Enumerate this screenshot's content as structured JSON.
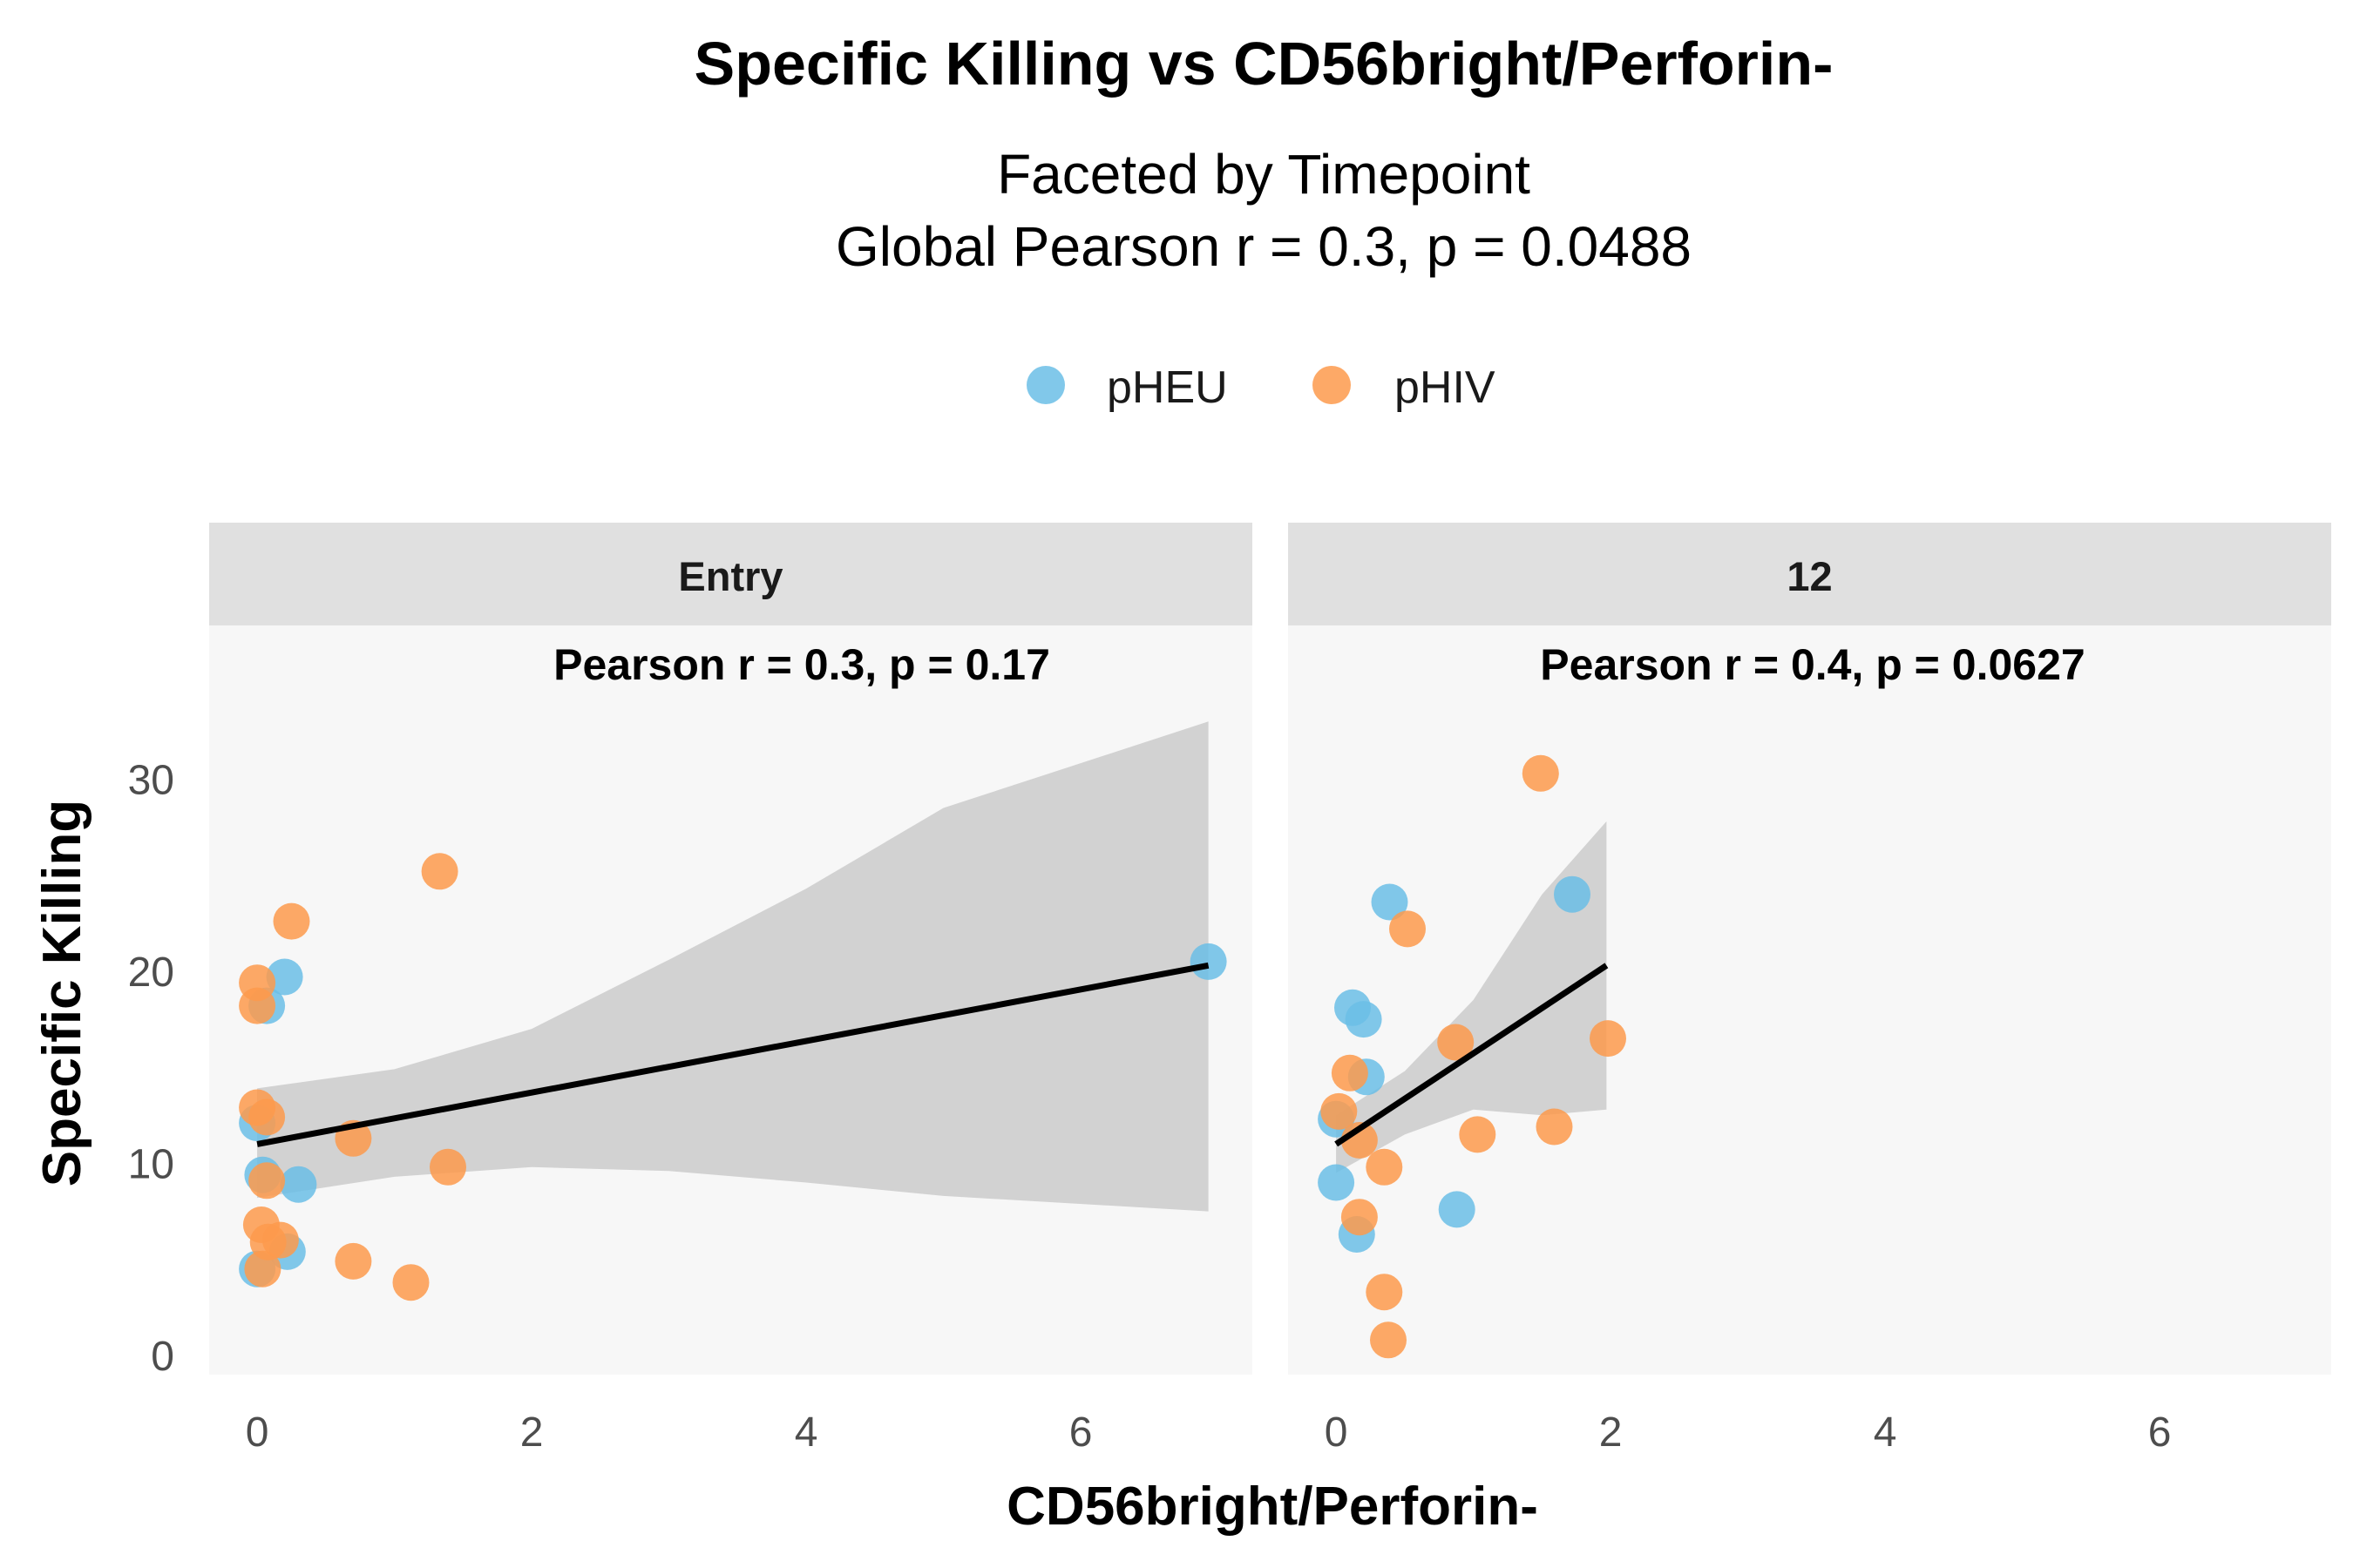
{
  "chart_data": {
    "type": "scatter",
    "title": "Specific Killing vs CD56bright/Perforin-",
    "subtitle_lines": [
      "Faceted by Timepoint",
      "Global Pearson r = 0.3, p = 0.0488"
    ],
    "xlabel": "CD56bright/Perforin-",
    "ylabel": "Specific Killing",
    "xlim": [
      -0.35,
      7.25
    ],
    "ylim": [
      -1,
      38
    ],
    "x_ticks": [
      0,
      2,
      4,
      6
    ],
    "y_ticks": [
      0,
      10,
      20,
      30
    ],
    "grid": false,
    "legend_position": "top",
    "legend": [
      {
        "label": "pHEU",
        "color": "#6BBEE6"
      },
      {
        "label": "pHIV",
        "color": "#FD9A4C"
      }
    ],
    "facets": [
      {
        "label": "Entry",
        "annotation": "Pearson r = 0.3, p = 0.17",
        "fit": {
          "x0": 0,
          "x1": 6.93,
          "y0": 11.0,
          "y1": 20.3
        },
        "band": {
          "lower": [
            8.2,
            9.3,
            9.8,
            9.6,
            9.0,
            8.3,
            7.5
          ],
          "upper": [
            13.9,
            14.9,
            17.0,
            20.6,
            24.3,
            28.5,
            33.0
          ],
          "x": [
            0,
            1,
            2,
            3,
            4,
            5,
            6.93
          ]
        },
        "series": [
          {
            "name": "pHEU",
            "points": [
              [
                0.0,
                4.5
              ],
              [
                0.04,
                9.4
              ],
              [
                0.0,
                12.1
              ],
              [
                0.07,
                18.2
              ],
              [
                0.2,
                19.7
              ],
              [
                0.3,
                8.9
              ],
              [
                0.22,
                5.4
              ],
              [
                6.93,
                20.5
              ]
            ]
          },
          {
            "name": "pHIV",
            "points": [
              [
                0.0,
                19.4
              ],
              [
                0.0,
                18.2
              ],
              [
                0.0,
                12.9
              ],
              [
                0.07,
                12.4
              ],
              [
                0.07,
                9.1
              ],
              [
                0.03,
                6.8
              ],
              [
                0.04,
                4.5
              ],
              [
                0.08,
                5.9
              ],
              [
                0.17,
                6.0
              ],
              [
                0.25,
                22.6
              ],
              [
                0.7,
                11.3
              ],
              [
                0.7,
                4.9
              ],
              [
                1.12,
                3.8
              ],
              [
                1.33,
                25.2
              ],
              [
                1.39,
                9.8
              ]
            ]
          }
        ]
      },
      {
        "label": "12",
        "annotation": "Pearson r = 0.4, p = 0.0627",
        "fit": {
          "x0": 0,
          "x1": 1.97,
          "y0": 11.0,
          "y1": 20.3
        },
        "band": {
          "lower": [
            9.5,
            11.5,
            12.8,
            12.5,
            12.8
          ],
          "upper": [
            12.5,
            14.8,
            18.5,
            24.0,
            27.8
          ],
          "x": [
            0,
            0.5,
            1.0,
            1.5,
            1.97
          ]
        },
        "series": [
          {
            "name": "pHEU",
            "points": [
              [
                0.0,
                12.3
              ],
              [
                0.0,
                9.0
              ],
              [
                0.12,
                18.1
              ],
              [
                0.2,
                17.5
              ],
              [
                0.22,
                14.5
              ],
              [
                0.15,
                6.3
              ],
              [
                0.39,
                23.6
              ],
              [
                0.88,
                7.6
              ],
              [
                1.72,
                24.0
              ]
            ]
          },
          {
            "name": "pHIV",
            "points": [
              [
                0.02,
                12.7
              ],
              [
                0.1,
                14.7
              ],
              [
                0.17,
                11.2
              ],
              [
                0.17,
                7.2
              ],
              [
                0.35,
                9.8
              ],
              [
                0.35,
                3.3
              ],
              [
                0.38,
                0.8
              ],
              [
                0.52,
                22.2
              ],
              [
                0.87,
                16.3
              ],
              [
                1.03,
                11.5
              ],
              [
                1.49,
                30.3
              ],
              [
                1.59,
                11.9
              ],
              [
                1.98,
                16.5
              ]
            ]
          }
        ]
      }
    ]
  }
}
